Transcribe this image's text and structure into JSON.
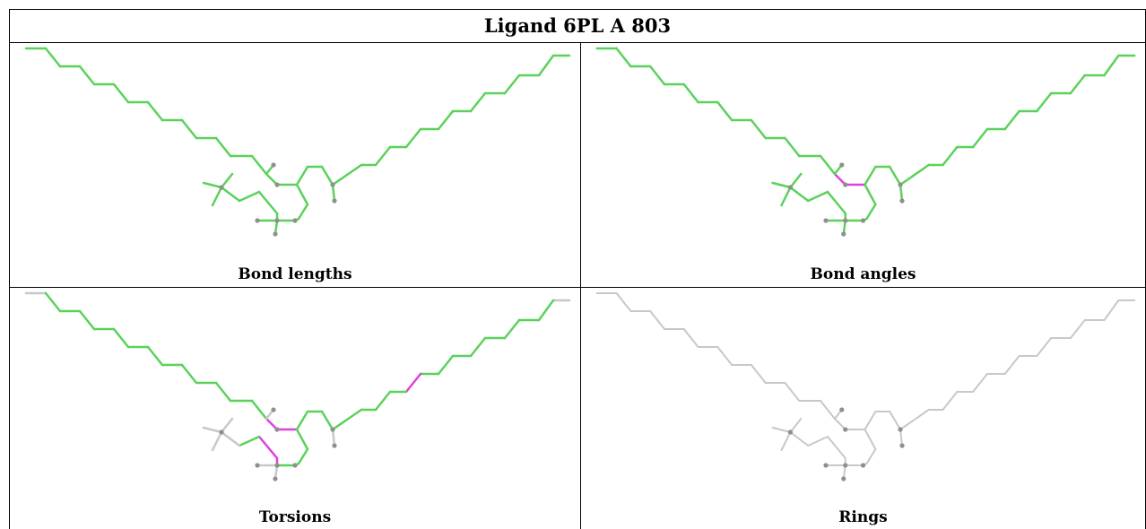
{
  "title": "Ligand 6PL A 803",
  "colors": {
    "ok": "#5ad25a",
    "outlier": "#e040e0",
    "neutral": "#c8c8c8",
    "atom": "#8f8f8f"
  },
  "panels": [
    {
      "caption": "Bond lengths"
    },
    {
      "caption": "Bond angles"
    },
    {
      "caption": "Torsions"
    },
    {
      "caption": "Rings"
    }
  ]
}
